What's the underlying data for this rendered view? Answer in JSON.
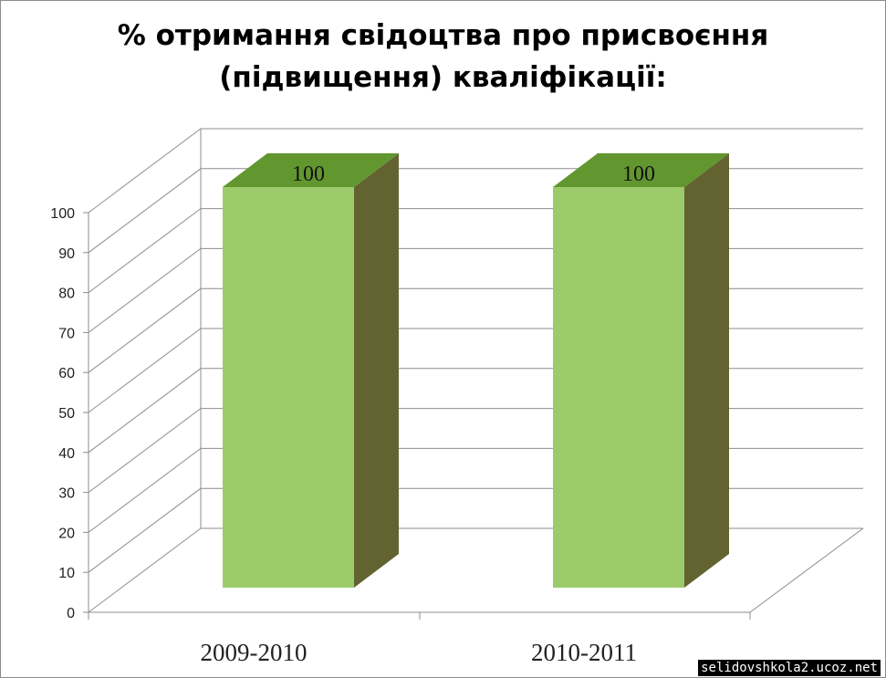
{
  "chart_data": {
    "type": "bar",
    "title": [
      "% отримання свідоцтва про присвоєння",
      "(підвищення) кваліфікації:"
    ],
    "categories": [
      "2009-2010",
      "2010-2011"
    ],
    "values": [
      100,
      100
    ],
    "data_labels": [
      "100",
      "100"
    ],
    "yticks": [
      "0",
      "10",
      "20",
      "30",
      "40",
      "50",
      "60",
      "70",
      "80",
      "90",
      "100"
    ],
    "ylim": [
      0,
      100
    ],
    "grid": true,
    "legend": "none",
    "colors": {
      "bar_front": "#9bcb6a",
      "bar_top": "#62972f",
      "bar_side": "#636332",
      "grid": "#8c8c8c"
    }
  },
  "watermark": "selidovshkola2.ucoz.net"
}
